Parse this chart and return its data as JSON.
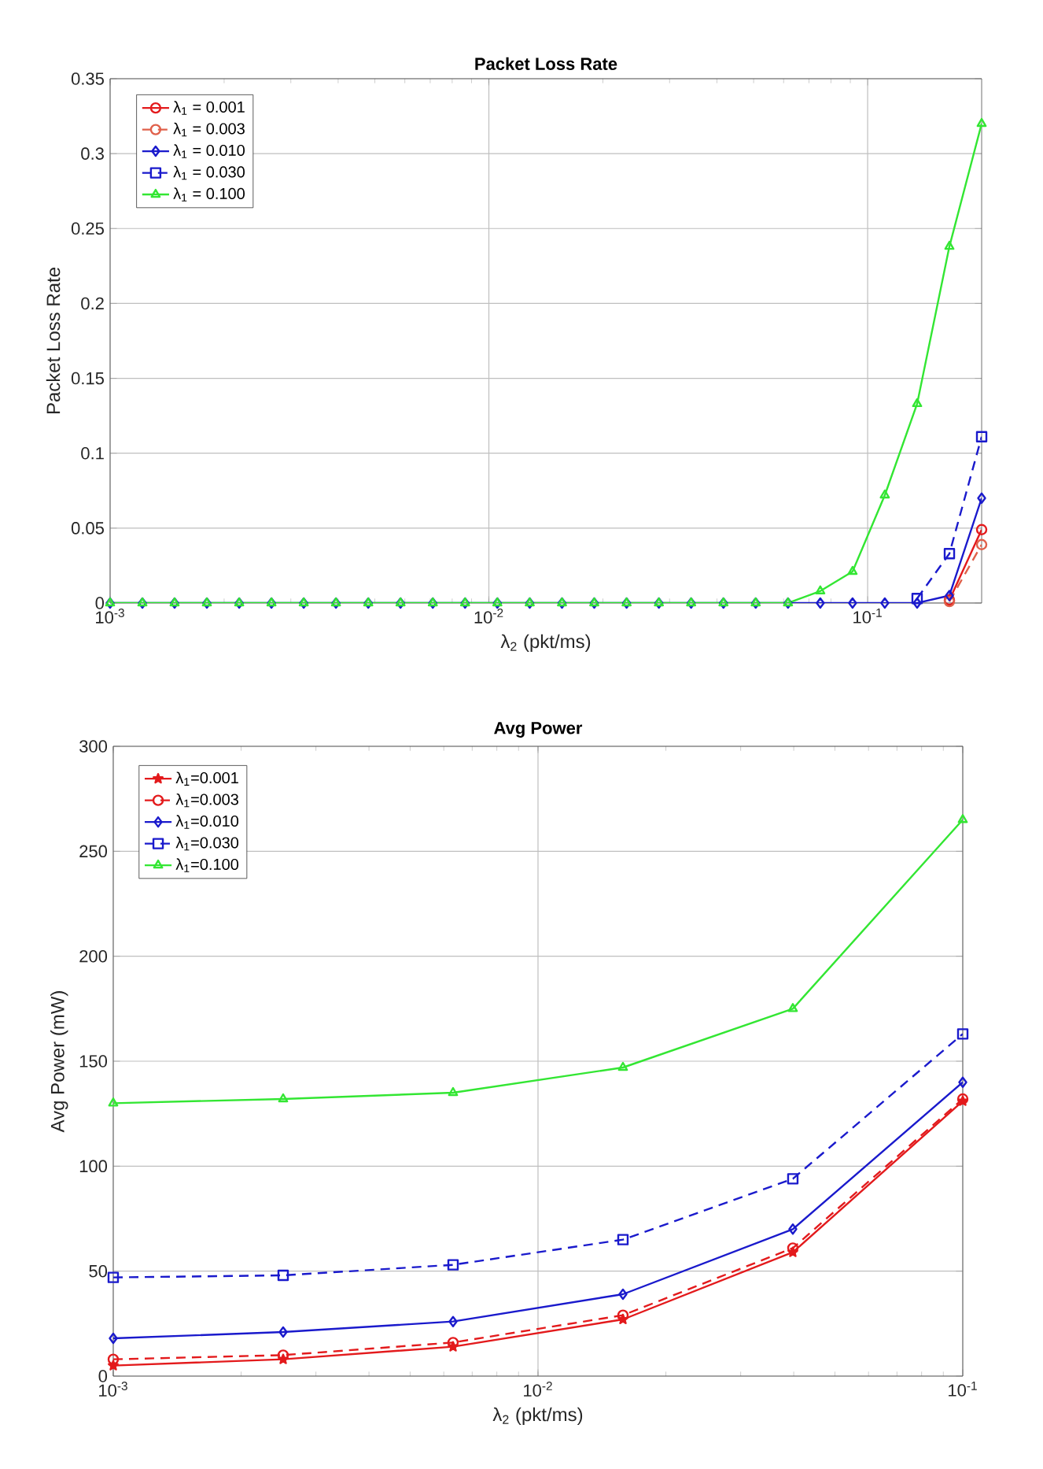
{
  "chart_data": [
    {
      "type": "line",
      "title": "Packet Loss Rate",
      "xlabel": "λ$_{2}$ (pkt/ms)",
      "ylabel": "Packet Loss Rate",
      "log": "x",
      "grid": true,
      "legend": "top left",
      "x": [
        0.001,
        0.001217,
        0.00148,
        0.001801,
        0.002192,
        0.002667,
        0.003245,
        0.003948,
        0.004804,
        0.005845,
        0.007112,
        0.008654,
        0.01053,
        0.01282,
        0.0156,
        0.01898,
        0.0231,
        0.02811,
        0.0342,
        0.04162,
        0.05064,
        0.06163,
        0.075,
        0.09124,
        0.111,
        0.1351,
        0.1644,
        0.2
      ],
      "xlim": [
        0.001,
        0.2
      ],
      "xticks": [
        {
          "value": 0.001,
          "label": "10$^{-3}$"
        },
        {
          "value": 0.01,
          "label": "10$^{-2}$"
        },
        {
          "value": 0.1,
          "label": "10$^{-1}$"
        }
      ],
      "ylim": [
        0,
        0.35
      ],
      "yticks": [
        0,
        0.05,
        0.1,
        0.15,
        0.2,
        0.25,
        0.3,
        0.35
      ],
      "series": [
        {
          "name": "λ$_{1}$ = 0.001",
          "color": "#e31a1c",
          "marker": "circle",
          "line_style": "solid",
          "values": [
            null,
            null,
            null,
            null,
            null,
            null,
            null,
            null,
            null,
            null,
            null,
            null,
            null,
            null,
            null,
            null,
            null,
            null,
            null,
            null,
            null,
            null,
            null,
            null,
            null,
            null,
            0.002,
            0.049
          ]
        },
        {
          "name": "λ$_{1}$ = 0.003",
          "color": "#e0604a",
          "marker": "circle",
          "line_style": "dashed",
          "values": [
            null,
            null,
            null,
            null,
            null,
            null,
            null,
            null,
            null,
            null,
            null,
            null,
            null,
            null,
            null,
            null,
            null,
            null,
            null,
            null,
            null,
            null,
            null,
            null,
            null,
            null,
            0.001,
            0.039
          ]
        },
        {
          "name": "λ$_{1}$ = 0.010",
          "color": "#1a1acc",
          "marker": "diamond",
          "line_style": "solid",
          "values": [
            0,
            0,
            0,
            0,
            0,
            0,
            0,
            0,
            0,
            0,
            0,
            0,
            0,
            0,
            0,
            0,
            0,
            0,
            0,
            0,
            0,
            0,
            0,
            0,
            0,
            0,
            0.005,
            0.07
          ]
        },
        {
          "name": "λ$_{1}$ = 0.030",
          "color": "#1a1acc",
          "marker": "square",
          "line_style": "dashed",
          "values": [
            null,
            null,
            null,
            null,
            null,
            null,
            null,
            null,
            null,
            null,
            null,
            null,
            null,
            null,
            null,
            null,
            null,
            null,
            null,
            null,
            null,
            null,
            null,
            null,
            null,
            0.003,
            0.033,
            0.111
          ]
        },
        {
          "name": "λ$_{1}$ = 0.100",
          "color": "#33e633",
          "marker": "triangle",
          "line_style": "solid",
          "values": [
            0,
            0,
            0,
            0,
            0,
            0,
            0,
            0,
            0,
            0,
            0,
            0,
            0,
            0,
            0,
            0,
            0,
            0,
            0,
            0,
            0,
            0,
            0.008,
            0.021,
            0.072,
            0.133,
            0.238,
            0.32
          ]
        }
      ]
    },
    {
      "type": "line",
      "title": "Avg Power",
      "xlabel": "λ$_{2}$ (pkt/ms)",
      "ylabel": "Avg Power (mW)",
      "log": "x",
      "grid": true,
      "legend": "top left",
      "x": [
        0.001,
        0.002512,
        0.00631,
        0.01585,
        0.03981,
        0.1
      ],
      "xlim": [
        0.001,
        0.1
      ],
      "xticks": [
        {
          "value": 0.001,
          "label": "10$^{-3}$"
        },
        {
          "value": 0.01,
          "label": "10$^{-2}$"
        },
        {
          "value": 0.1,
          "label": "10$^{-1}$"
        }
      ],
      "ylim": [
        0,
        300
      ],
      "yticks": [
        0,
        50,
        100,
        150,
        200,
        250,
        300
      ],
      "series": [
        {
          "name": "λ$_{1}$=0.001",
          "color": "#e31a1c",
          "marker": "star",
          "line_style": "solid",
          "values": [
            5,
            8,
            14,
            27,
            59,
            131
          ]
        },
        {
          "name": "λ$_{1}$=0.003",
          "color": "#e31a1c",
          "marker": "circle",
          "line_style": "dashed",
          "values": [
            8,
            10,
            16,
            29,
            61,
            132
          ]
        },
        {
          "name": "λ$_{1}$=0.010",
          "color": "#1a1acc",
          "marker": "diamond",
          "line_style": "solid",
          "values": [
            18,
            21,
            26,
            39,
            70,
            140
          ]
        },
        {
          "name": "λ$_{1}$=0.030",
          "color": "#1a1acc",
          "marker": "square",
          "line_style": "dashed",
          "values": [
            47,
            48,
            53,
            65,
            94,
            163
          ]
        },
        {
          "name": "λ$_{1}$=0.100",
          "color": "#33e633",
          "marker": "triangle",
          "line_style": "solid",
          "values": [
            130,
            132,
            135,
            147,
            175,
            265
          ]
        }
      ]
    }
  ]
}
